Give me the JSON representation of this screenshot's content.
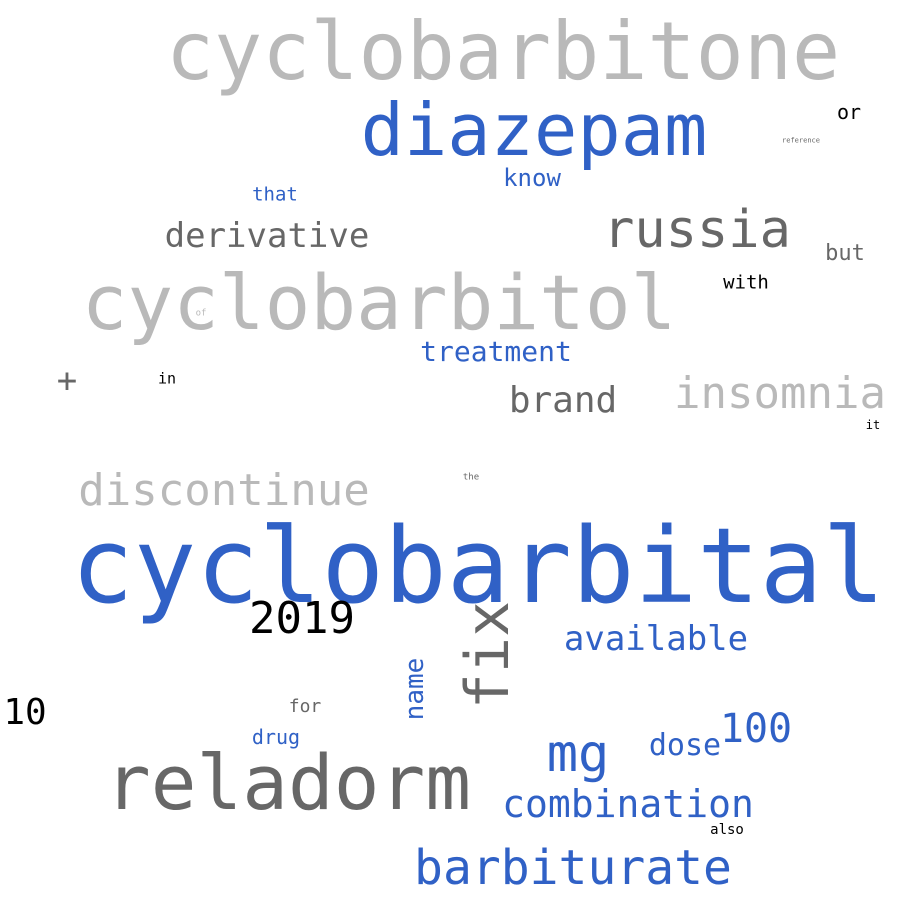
{
  "words": [
    {
      "id": "cyclobarbitone",
      "text": "cyclobarbitone",
      "color": "#b9b9b9"
    },
    {
      "id": "diazepam",
      "text": "diazepam",
      "color": "#3061c6"
    },
    {
      "id": "or",
      "text": "or",
      "color": "#000000"
    },
    {
      "id": "reference",
      "text": "reference",
      "color": "#676767"
    },
    {
      "id": "know",
      "text": "know",
      "color": "#3061c6"
    },
    {
      "id": "that",
      "text": "that",
      "color": "#3061c6"
    },
    {
      "id": "derivative",
      "text": "derivative",
      "color": "#676767"
    },
    {
      "id": "russia",
      "text": "russia",
      "color": "#676767"
    },
    {
      "id": "but",
      "text": "but",
      "color": "#676767"
    },
    {
      "id": "cyclobarbitol",
      "text": "cyclobarbitol",
      "color": "#b9b9b9"
    },
    {
      "id": "with",
      "text": "with",
      "color": "#000000"
    },
    {
      "id": "of",
      "text": "of",
      "color": "#b9b9b9"
    },
    {
      "id": "treatment",
      "text": "treatment",
      "color": "#3061c6"
    },
    {
      "id": "plus",
      "text": "+",
      "color": "#676767"
    },
    {
      "id": "in",
      "text": "in",
      "color": "#000000"
    },
    {
      "id": "brand",
      "text": "brand",
      "color": "#676767"
    },
    {
      "id": "insomnia",
      "text": "insomnia",
      "color": "#b9b9b9"
    },
    {
      "id": "it",
      "text": "it",
      "color": "#000000"
    },
    {
      "id": "discontinue",
      "text": "discontinue",
      "color": "#b9b9b9"
    },
    {
      "id": "the",
      "text": "the",
      "color": "#676767"
    },
    {
      "id": "cyclobarbital",
      "text": "cyclobarbital",
      "color": "#3061c6"
    },
    {
      "id": "2019",
      "text": "2019",
      "color": "#000000"
    },
    {
      "id": "fix",
      "text": "fix",
      "color": "#676767"
    },
    {
      "id": "available",
      "text": "available",
      "color": "#3061c6"
    },
    {
      "id": "name",
      "text": "name",
      "color": "#3061c6"
    },
    {
      "id": "10",
      "text": "10",
      "color": "#000000"
    },
    {
      "id": "for",
      "text": "for",
      "color": "#676767"
    },
    {
      "id": "drug",
      "text": "drug",
      "color": "#3061c6"
    },
    {
      "id": "100",
      "text": "100",
      "color": "#3061c6"
    },
    {
      "id": "mg",
      "text": "mg",
      "color": "#3061c6"
    },
    {
      "id": "dose",
      "text": "dose",
      "color": "#3061c6"
    },
    {
      "id": "reladorm",
      "text": "reladorm",
      "color": "#676767"
    },
    {
      "id": "combination",
      "text": "combination",
      "color": "#3061c6"
    },
    {
      "id": "also",
      "text": "also",
      "color": "#000000"
    },
    {
      "id": "barbiturate",
      "text": "barbiturate",
      "color": "#3061c6"
    }
  ]
}
